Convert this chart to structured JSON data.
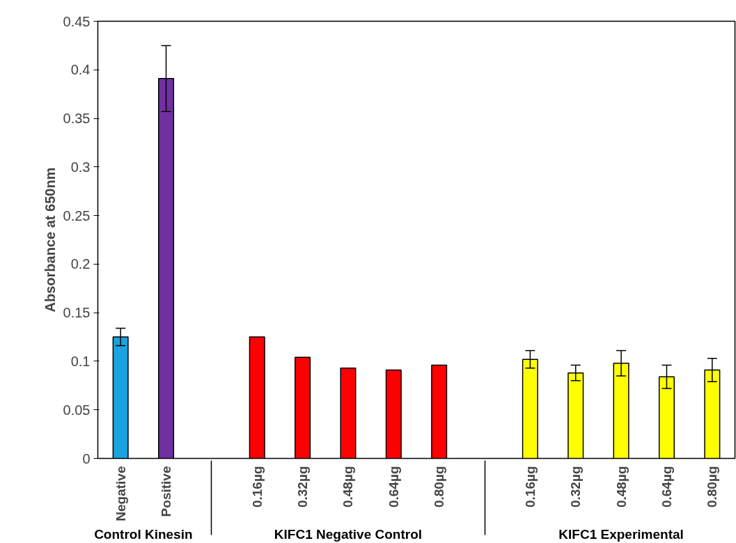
{
  "chart_data": {
    "type": "bar",
    "ylabel": "Absorbance at 650nm",
    "categories": [
      "Negative",
      "Positive",
      "0.16µg",
      "0.32µg",
      "0.48µg",
      "0.64µg",
      "0.80µg",
      "0.16µg",
      "0.32µg",
      "0.48µg",
      "0.64µg",
      "0.80µg"
    ],
    "values": [
      0.125,
      0.391,
      0.125,
      0.104,
      0.093,
      0.091,
      0.096,
      0.102,
      0.088,
      0.098,
      0.084,
      0.091
    ],
    "errors": [
      0.009,
      0.034,
      null,
      null,
      null,
      null,
      null,
      0.009,
      0.008,
      0.013,
      0.012,
      0.012
    ],
    "colors": [
      "#1aa3e0",
      "#7030a0",
      "#ff0000",
      "#ff0000",
      "#ff0000",
      "#ff0000",
      "#ff0000",
      "#ffff00",
      "#ffff00",
      "#ffff00",
      "#ffff00",
      "#ffff00"
    ],
    "annotations": [
      "Control Kinesin",
      "KIFC1 Negative Control",
      "KIFC1 Experimental"
    ],
    "ylim": [
      0,
      0.45
    ],
    "yticks": [
      0,
      0.05,
      0.1,
      0.15,
      0.2,
      0.25,
      0.3,
      0.35,
      0.4,
      0.45
    ],
    "grid": false
  }
}
